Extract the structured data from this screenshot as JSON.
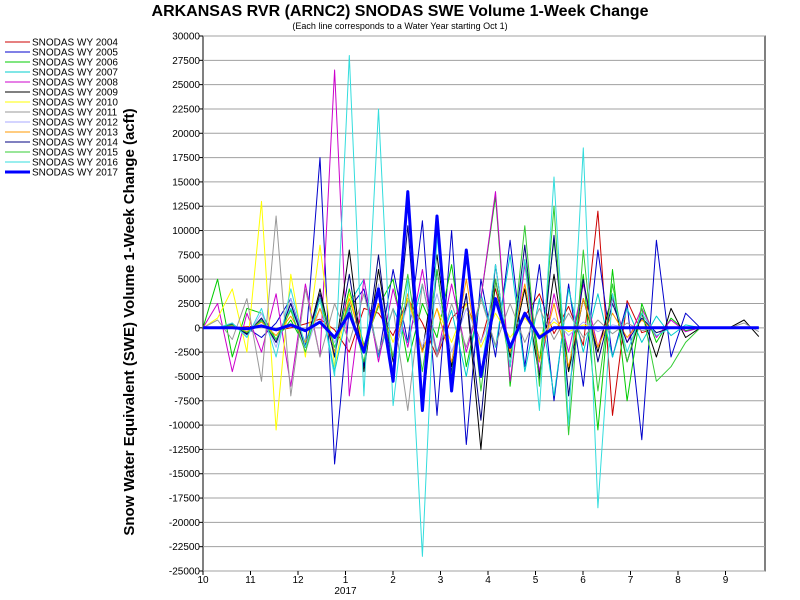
{
  "chart_data": {
    "type": "line",
    "title": "ARKANSAS RVR (ARNC2) SNODAS SWE Volume 1-Week Change",
    "subtitle": "(Each line corresponds to a Water Year starting Oct 1)",
    "ylabel": "Snow Water Equivalent (SWE) Volume 1-Week Change (acft)",
    "xlabel": "",
    "ylim": [
      -25000,
      30000
    ],
    "yticks": [
      30000,
      27500,
      25000,
      22500,
      20000,
      17500,
      15000,
      12500,
      10000,
      7500,
      5000,
      2500,
      0,
      -2500,
      -5000,
      -7500,
      -10000,
      -12500,
      -15000,
      -17500,
      -20000,
      -22500,
      -25000
    ],
    "xticks": [
      "10",
      "11",
      "12",
      "1",
      "2",
      "3",
      "4",
      "5",
      "6",
      "7",
      "8",
      "9"
    ],
    "xtick_year": "2017",
    "grid": true,
    "legend_position": "left",
    "series": [
      {
        "name": "SNODAS WY 2004",
        "color": "#cc0000",
        "values": [
          0,
          0,
          0,
          100,
          200,
          -300,
          0,
          400,
          900,
          -200,
          -2500,
          2000,
          1500,
          -800,
          3000,
          500,
          -3000,
          1000,
          2500,
          -1500,
          4000,
          -2000,
          1200,
          3500,
          -600,
          2200,
          -1800,
          12000,
          -9000,
          2800,
          -500,
          0,
          0,
          0,
          0,
          0,
          0,
          0,
          0
        ]
      },
      {
        "name": "SNODAS WY 2005",
        "color": "#0000cc",
        "values": [
          0,
          0,
          0,
          0,
          -1000,
          500,
          3000,
          -2000,
          17500,
          -14000,
          2000,
          4000,
          -3000,
          6000,
          -1500,
          11000,
          -9000,
          10000,
          -12000,
          5000,
          -3000,
          9000,
          -4000,
          6500,
          -7500,
          4500,
          -6000,
          8000,
          -3000,
          2500,
          -11500,
          9000,
          -3000,
          1500,
          0,
          0,
          0,
          0,
          0
        ]
      },
      {
        "name": "SNODAS WY 2006",
        "color": "#00cc00",
        "values": [
          0,
          5000,
          -3000,
          2000,
          1500,
          -1200,
          800,
          -2000,
          3000,
          -2500,
          4000,
          -1800,
          2200,
          5000,
          -3500,
          2500,
          -1000,
          6500,
          -4000,
          3000,
          13500,
          -6000,
          7000,
          -3500,
          9000,
          -4500,
          5500,
          -10500,
          6000,
          -7500,
          2500,
          -1500,
          1000,
          -300,
          0,
          0,
          0,
          0,
          0
        ]
      },
      {
        "name": "SNODAS WY 2007",
        "color": "#00cccc",
        "values": [
          0,
          0,
          200,
          -500,
          700,
          -1200,
          2000,
          -1500,
          3000,
          -4500,
          2500,
          5000,
          -3000,
          2000,
          -1500,
          4500,
          -2500,
          1800,
          -5000,
          3500,
          -2000,
          7500,
          -4500,
          3000,
          -7000,
          4000,
          -2500,
          3500,
          -3000,
          2000,
          -1500,
          1200,
          -800,
          300,
          0,
          0,
          0,
          0,
          0
        ]
      },
      {
        "name": "SNODAS WY 2008",
        "color": "#cc00cc",
        "values": [
          0,
          2500,
          -4500,
          1500,
          -2500,
          3500,
          -6000,
          4500,
          -3000,
          26500,
          -7000,
          5000,
          -3500,
          4000,
          -2000,
          6000,
          -3000,
          4500,
          -2500,
          3000,
          14000,
          -5500,
          6500,
          -4500,
          3500,
          -2500,
          4500,
          -2000,
          3000,
          -1500,
          2000,
          -1000,
          800,
          -400,
          0,
          0,
          0,
          0,
          0
        ]
      },
      {
        "name": "SNODAS WY 2009",
        "color": "#000000",
        "values": [
          0,
          0,
          300,
          -600,
          1000,
          -1500,
          2500,
          -2000,
          4000,
          -3000,
          8000,
          -4500,
          6000,
          -3500,
          3000,
          -2500,
          7500,
          -4000,
          3500,
          -12500,
          5000,
          -3000,
          4000,
          -5000,
          5500,
          -4500,
          3000,
          -2500,
          3500,
          -3500,
          1500,
          -3000,
          2000,
          -1000,
          0,
          0,
          0,
          800,
          -900
        ]
      },
      {
        "name": "SNODAS WY 2010",
        "color": "#ffff00",
        "values": [
          0,
          1000,
          4000,
          -2500,
          13000,
          -10500,
          5500,
          -3000,
          8500,
          -4000,
          3500,
          -2000,
          2500,
          -1500,
          3000,
          -2500,
          2000,
          -1500,
          2500,
          -2000,
          1500,
          -1000,
          1000,
          -800,
          600,
          -400,
          300,
          0,
          0,
          0,
          0,
          0,
          0,
          0,
          0,
          0,
          0,
          0,
          0
        ]
      },
      {
        "name": "SNODAS WY 2011",
        "color": "#999999",
        "values": [
          0,
          800,
          -1200,
          3000,
          -5500,
          11500,
          -7000,
          4000,
          -3000,
          2500,
          -1500,
          3500,
          -2500,
          2000,
          -8500,
          4500,
          -3000,
          2500,
          -2000,
          3000,
          -1800,
          2500,
          -1500,
          2000,
          -1200,
          1500,
          -1000,
          800,
          -600,
          500,
          -300,
          0,
          0,
          0,
          0,
          0,
          0,
          500,
          -400
        ]
      },
      {
        "name": "SNODAS WY 2012",
        "color": "#aaaaff",
        "values": [
          0,
          0,
          500,
          -900,
          1500,
          -2000,
          3000,
          -2500,
          2000,
          -1500,
          2500,
          -3500,
          4500,
          -3000,
          2500,
          -2000,
          3500,
          -2500,
          2000,
          -1500,
          2500,
          -2000,
          1500,
          -1200,
          1000,
          -800,
          600,
          -400,
          300,
          0,
          0,
          0,
          0,
          0,
          0,
          0,
          0,
          0,
          0
        ]
      },
      {
        "name": "SNODAS WY 2013",
        "color": "#ff9900",
        "values": [
          0,
          0,
          200,
          -400,
          600,
          -800,
          1200,
          -1500,
          2000,
          -2500,
          3000,
          -2000,
          2500,
          -3000,
          3500,
          -2500,
          2000,
          -3500,
          5000,
          -4500,
          3000,
          -2500,
          4500,
          -3500,
          2500,
          -4000,
          3000,
          -2000,
          1500,
          -1000,
          800,
          -500,
          0,
          0,
          0,
          0,
          0,
          0,
          0
        ]
      },
      {
        "name": "SNODAS WY 2014",
        "color": "#000080",
        "values": [
          0,
          0,
          400,
          -700,
          1000,
          -1500,
          2500,
          -2000,
          3500,
          -3000,
          5500,
          -4000,
          7500,
          -5000,
          10500,
          -8500,
          6000,
          -4500,
          3500,
          -9500,
          6500,
          -4000,
          8500,
          -5500,
          9500,
          -7000,
          5000,
          -3500,
          2500,
          -1500,
          1000,
          -500,
          0,
          0,
          0,
          0,
          0,
          0,
          0
        ]
      },
      {
        "name": "SNODAS WY 2015",
        "color": "#33cc33",
        "values": [
          0,
          0,
          300,
          -500,
          800,
          -1200,
          1800,
          -2500,
          3000,
          -2000,
          2500,
          -3500,
          4000,
          -3000,
          5500,
          -4500,
          6000,
          -5000,
          8000,
          -6500,
          5000,
          -4000,
          10500,
          -6000,
          12500,
          -11000,
          8000,
          -6500,
          4500,
          -3500,
          2000,
          -5500,
          -4000,
          -1500,
          0,
          0,
          0,
          0,
          0
        ]
      },
      {
        "name": "SNODAS WY 2016",
        "color": "#33dddd",
        "values": [
          0,
          0,
          500,
          -1000,
          2000,
          -3000,
          4000,
          -2000,
          3000,
          -5000,
          28000,
          -7000,
          22500,
          -8000,
          5000,
          -23500,
          9500,
          -6000,
          8000,
          -5000,
          6500,
          -4000,
          7000,
          -8500,
          15500,
          -10000,
          18500,
          -18500,
          3500,
          -2500,
          1500,
          -800,
          0,
          0,
          0,
          0,
          0,
          0,
          0
        ]
      },
      {
        "name": "SNODAS WY 2017",
        "color": "#0000ff",
        "bold": true,
        "values": [
          0,
          0,
          0,
          -100,
          200,
          -200,
          300,
          -300,
          600,
          -1000,
          1500,
          -2500,
          4000,
          -5500,
          14000,
          -8500,
          11500,
          -6500,
          8000,
          -5000,
          3000,
          -2000,
          1500,
          -1000,
          0,
          0,
          0,
          0,
          0,
          0,
          0,
          0,
          0,
          0,
          0,
          0,
          0,
          0,
          0
        ]
      }
    ]
  }
}
